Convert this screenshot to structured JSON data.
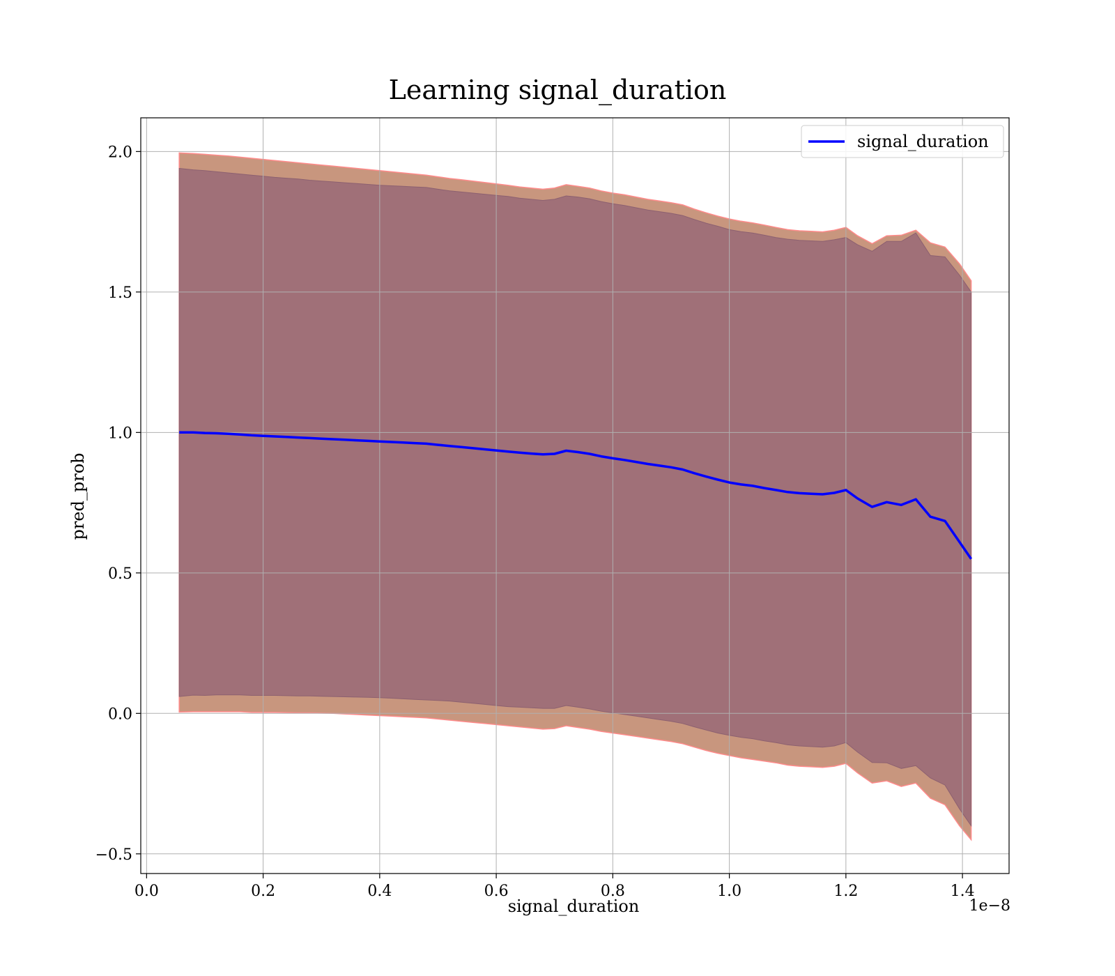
{
  "chart_data": {
    "type": "line",
    "title": "Learning signal_duration",
    "xlabel": "signal_duration",
    "ylabel": "pred_prob",
    "x_offset_text": "1e−8",
    "xlim": [
      -0.01,
      1.48
    ],
    "ylim": [
      -0.57,
      2.12
    ],
    "x_ticks": [
      0.0,
      0.2,
      0.4,
      0.6,
      0.8,
      1.0,
      1.2,
      1.4
    ],
    "x_tick_labels": [
      "0.0",
      "0.2",
      "0.4",
      "0.6",
      "0.8",
      "1.0",
      "1.2",
      "1.4"
    ],
    "y_ticks": [
      -0.5,
      0.0,
      0.5,
      1.0,
      1.5,
      2.0
    ],
    "y_tick_labels": [
      "−0.5",
      "0.0",
      "0.5",
      "1.0",
      "1.5",
      "2.0"
    ],
    "grid": true,
    "legend_position": "top-right",
    "colors": {
      "line": "#0000ff",
      "inner_band": "#a07078",
      "outer_band": "#c8967e",
      "outer_edge": "#ff8a8a",
      "grid": "#b0b0b0"
    },
    "series": [
      {
        "name": "signal_duration",
        "x": [
          0.056,
          0.08,
          0.1,
          0.12,
          0.14,
          0.16,
          0.18,
          0.2,
          0.22,
          0.24,
          0.26,
          0.28,
          0.3,
          0.32,
          0.34,
          0.36,
          0.38,
          0.4,
          0.42,
          0.44,
          0.46,
          0.48,
          0.5,
          0.52,
          0.54,
          0.56,
          0.58,
          0.6,
          0.62,
          0.64,
          0.66,
          0.68,
          0.7,
          0.72,
          0.74,
          0.76,
          0.78,
          0.8,
          0.82,
          0.84,
          0.86,
          0.88,
          0.9,
          0.92,
          0.94,
          0.96,
          0.98,
          1.0,
          1.02,
          1.04,
          1.06,
          1.08,
          1.1,
          1.12,
          1.14,
          1.16,
          1.18,
          1.2,
          1.22,
          1.245,
          1.27,
          1.295,
          1.32,
          1.345,
          1.37,
          1.395,
          1.415
        ],
        "mean": [
          1.0,
          1.0,
          0.998,
          0.997,
          0.995,
          0.993,
          0.99,
          0.988,
          0.986,
          0.984,
          0.982,
          0.98,
          0.978,
          0.976,
          0.974,
          0.972,
          0.97,
          0.968,
          0.966,
          0.964,
          0.962,
          0.96,
          0.956,
          0.952,
          0.948,
          0.944,
          0.94,
          0.936,
          0.932,
          0.928,
          0.925,
          0.922,
          0.924,
          0.935,
          0.93,
          0.924,
          0.915,
          0.908,
          0.902,
          0.895,
          0.888,
          0.882,
          0.876,
          0.868,
          0.855,
          0.843,
          0.832,
          0.822,
          0.815,
          0.81,
          0.802,
          0.795,
          0.788,
          0.784,
          0.782,
          0.78,
          0.785,
          0.795,
          0.765,
          0.735,
          0.752,
          0.742,
          0.762,
          0.7,
          0.685,
          0.61,
          0.55
        ],
        "inner_upper": [
          1.94,
          1.935,
          1.932,
          1.928,
          1.924,
          1.92,
          1.916,
          1.912,
          1.908,
          1.905,
          1.902,
          1.898,
          1.895,
          1.892,
          1.889,
          1.886,
          1.883,
          1.88,
          1.878,
          1.876,
          1.874,
          1.872,
          1.866,
          1.86,
          1.856,
          1.852,
          1.848,
          1.844,
          1.84,
          1.834,
          1.83,
          1.826,
          1.83,
          1.842,
          1.838,
          1.832,
          1.822,
          1.814,
          1.808,
          1.8,
          1.792,
          1.786,
          1.78,
          1.772,
          1.758,
          1.745,
          1.734,
          1.722,
          1.715,
          1.71,
          1.702,
          1.694,
          1.688,
          1.684,
          1.682,
          1.68,
          1.686,
          1.694,
          1.668,
          1.645,
          1.68,
          1.68,
          1.71,
          1.63,
          1.625,
          1.56,
          1.5
        ],
        "inner_lower": [
          0.06,
          0.065,
          0.064,
          0.066,
          0.066,
          0.066,
          0.064,
          0.064,
          0.064,
          0.063,
          0.062,
          0.062,
          0.061,
          0.06,
          0.059,
          0.058,
          0.057,
          0.056,
          0.054,
          0.052,
          0.05,
          0.048,
          0.046,
          0.044,
          0.04,
          0.036,
          0.032,
          0.028,
          0.024,
          0.022,
          0.02,
          0.018,
          0.018,
          0.028,
          0.022,
          0.016,
          0.008,
          0.002,
          -0.004,
          -0.01,
          -0.016,
          -0.022,
          -0.028,
          -0.036,
          -0.048,
          -0.059,
          -0.07,
          -0.078,
          -0.085,
          -0.09,
          -0.098,
          -0.104,
          -0.112,
          -0.116,
          -0.118,
          -0.12,
          -0.116,
          -0.104,
          -0.138,
          -0.175,
          -0.176,
          -0.196,
          -0.186,
          -0.23,
          -0.255,
          -0.34,
          -0.4
        ],
        "outer_upper": [
          1.995,
          1.993,
          1.99,
          1.987,
          1.984,
          1.98,
          1.976,
          1.972,
          1.968,
          1.964,
          1.96,
          1.956,
          1.952,
          1.948,
          1.944,
          1.94,
          1.936,
          1.932,
          1.928,
          1.924,
          1.92,
          1.916,
          1.91,
          1.904,
          1.9,
          1.895,
          1.89,
          1.885,
          1.88,
          1.874,
          1.87,
          1.866,
          1.87,
          1.882,
          1.876,
          1.87,
          1.86,
          1.852,
          1.846,
          1.838,
          1.83,
          1.824,
          1.818,
          1.81,
          1.795,
          1.782,
          1.77,
          1.76,
          1.752,
          1.746,
          1.738,
          1.73,
          1.722,
          1.718,
          1.716,
          1.714,
          1.72,
          1.73,
          1.7,
          1.672,
          1.7,
          1.702,
          1.72,
          1.675,
          1.66,
          1.6,
          1.54
        ],
        "outer_lower": [
          0.005,
          0.006,
          0.006,
          0.006,
          0.006,
          0.006,
          0.004,
          0.004,
          0.004,
          0.003,
          0.002,
          0.002,
          0.001,
          0.0,
          -0.002,
          -0.004,
          -0.006,
          -0.008,
          -0.01,
          -0.012,
          -0.014,
          -0.016,
          -0.02,
          -0.024,
          -0.028,
          -0.032,
          -0.036,
          -0.04,
          -0.044,
          -0.048,
          -0.052,
          -0.056,
          -0.054,
          -0.044,
          -0.05,
          -0.056,
          -0.064,
          -0.07,
          -0.076,
          -0.082,
          -0.088,
          -0.094,
          -0.1,
          -0.108,
          -0.12,
          -0.132,
          -0.142,
          -0.15,
          -0.158,
          -0.164,
          -0.17,
          -0.176,
          -0.184,
          -0.188,
          -0.19,
          -0.192,
          -0.188,
          -0.178,
          -0.212,
          -0.248,
          -0.24,
          -0.26,
          -0.248,
          -0.302,
          -0.325,
          -0.4,
          -0.45
        ]
      }
    ]
  }
}
